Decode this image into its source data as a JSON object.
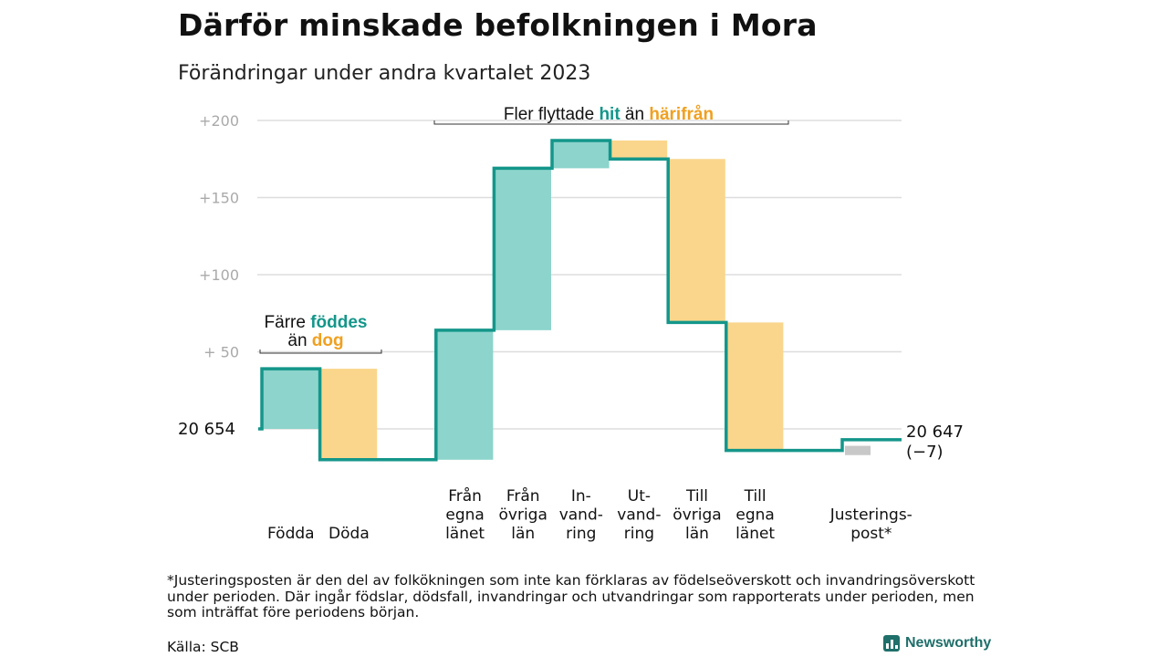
{
  "title": "Därför minskade befolkningen i Mora",
  "subtitle": "Förändringar under andra kvartalet 2023",
  "colors": {
    "increase": "#8cd4cc",
    "decrease": "#fad68c",
    "adjustment": "#c8c8c8",
    "line": "#14968a",
    "accent_orange": "#f0a020",
    "grid": "#dddddd",
    "axis_text": "#aaaaaa"
  },
  "chart_data": {
    "type": "waterfall",
    "baseline": 20654,
    "ylim": [
      -20,
      200
    ],
    "yticks": [
      {
        "value": 50,
        "label": "+  50"
      },
      {
        "value": 100,
        "label": "+100"
      },
      {
        "value": 150,
        "label": "+150"
      },
      {
        "value": 200,
        "label": "+200"
      }
    ],
    "start_label": "20  654",
    "end_label": [
      "20 647",
      "(−7)"
    ],
    "steps": [
      {
        "name": "Födda",
        "label_lines": [
          "Födda"
        ],
        "start": 0,
        "end": 39,
        "kind": "increase"
      },
      {
        "name": "Döda",
        "label_lines": [
          "Döda"
        ],
        "start": 39,
        "end": -20,
        "kind": "decrease"
      },
      {
        "name": "Gap",
        "label_lines": [],
        "start": -20,
        "end": -20,
        "kind": "none"
      },
      {
        "name": "Från egna länet",
        "label_lines": [
          "Från",
          "egna",
          "länet"
        ],
        "start": -20,
        "end": 64,
        "kind": "increase"
      },
      {
        "name": "Från övriga län",
        "label_lines": [
          "Från",
          "övriga",
          "län"
        ],
        "start": 64,
        "end": 169,
        "kind": "increase"
      },
      {
        "name": "Invandring",
        "label_lines": [
          "In-",
          "vand-",
          "ring"
        ],
        "start": 169,
        "end": 187,
        "kind": "increase"
      },
      {
        "name": "Utvandring",
        "label_lines": [
          "Ut-",
          "vand-",
          "ring"
        ],
        "start": 187,
        "end": 175,
        "kind": "decrease"
      },
      {
        "name": "Till övriga län",
        "label_lines": [
          "Till",
          "övriga",
          "län"
        ],
        "start": 175,
        "end": 69,
        "kind": "decrease"
      },
      {
        "name": "Till egna länet",
        "label_lines": [
          "Till",
          "egna",
          "länet"
        ],
        "start": 69,
        "end": -14,
        "kind": "decrease"
      },
      {
        "name": "Gap",
        "label_lines": [],
        "start": -14,
        "end": -14,
        "kind": "none"
      },
      {
        "name": "Justeringspost*",
        "label_lines": [
          "Justerings-",
          "post*"
        ],
        "start": -14,
        "end": -7,
        "kind": "adjustment"
      }
    ],
    "annotations": [
      {
        "id": "births",
        "parts": [
          {
            "line": 0,
            "text": "Färre ",
            "style": "plain"
          },
          {
            "line": 0,
            "text": "föddes",
            "style": "teal"
          },
          {
            "line": 1,
            "text": "än ",
            "style": "plain"
          },
          {
            "line": 1,
            "text": "dog",
            "style": "orange"
          }
        ]
      },
      {
        "id": "migration",
        "parts": [
          {
            "line": 0,
            "text": "Fler flyttade ",
            "style": "plain"
          },
          {
            "line": 0,
            "text": "hit",
            "style": "teal"
          },
          {
            "line": 0,
            "text": "  än ",
            "style": "plain"
          },
          {
            "line": 0,
            "text": "härifrån",
            "style": "orange"
          }
        ]
      }
    ]
  },
  "footnote": "*Justeringsposten är den del av folkökningen som inte kan förklaras av födelseöverskott och invandringsöverskott under perioden. Där ingår födslar, dödsfall, invandringar och utvandringar som rapporterats under perioden, men som inträffat före periodens början.",
  "source": "Källa: SCB",
  "brand": "Newsworthy"
}
